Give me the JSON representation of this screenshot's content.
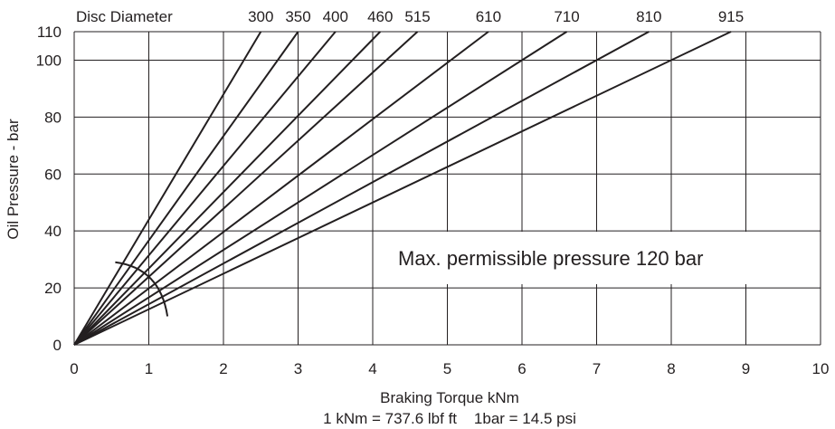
{
  "chart_data": {
    "type": "line",
    "title": "",
    "xlabel": "Braking Torque kNm",
    "ylabel": "Oil Pressure - bar",
    "conversion_note": "1 kNm = 737.6 lbf ft    1bar = 14.5 psi",
    "xlim": [
      0,
      10
    ],
    "ylim": [
      0,
      110
    ],
    "x_ticks": [
      0,
      1,
      2,
      3,
      4,
      5,
      6,
      7,
      8,
      9,
      10
    ],
    "y_ticks": [
      0,
      20,
      40,
      60,
      80,
      100,
      110
    ],
    "grid": true,
    "legend_title": "Disc Diameter",
    "series": [
      {
        "name": "300",
        "x": [
          0,
          2.5
        ],
        "y": [
          0,
          110
        ]
      },
      {
        "name": "350",
        "x": [
          0,
          3.0
        ],
        "y": [
          0,
          110
        ]
      },
      {
        "name": "400",
        "x": [
          0,
          3.5
        ],
        "y": [
          0,
          110
        ]
      },
      {
        "name": "460",
        "x": [
          0,
          4.1
        ],
        "y": [
          0,
          110
        ]
      },
      {
        "name": "515",
        "x": [
          0,
          4.6
        ],
        "y": [
          0,
          110
        ]
      },
      {
        "name": "610",
        "x": [
          0,
          5.55
        ],
        "y": [
          0,
          110
        ]
      },
      {
        "name": "710",
        "x": [
          0,
          6.6
        ],
        "y": [
          0,
          110
        ]
      },
      {
        "name": "810",
        "x": [
          0,
          7.7
        ],
        "y": [
          0,
          110
        ]
      },
      {
        "name": "915",
        "x": [
          0,
          8.8
        ],
        "y": [
          0,
          110
        ]
      }
    ],
    "annotation": "Max. permissible pressure 120 bar",
    "colors": {
      "line": "#231f20",
      "background": "#ffffff"
    }
  }
}
